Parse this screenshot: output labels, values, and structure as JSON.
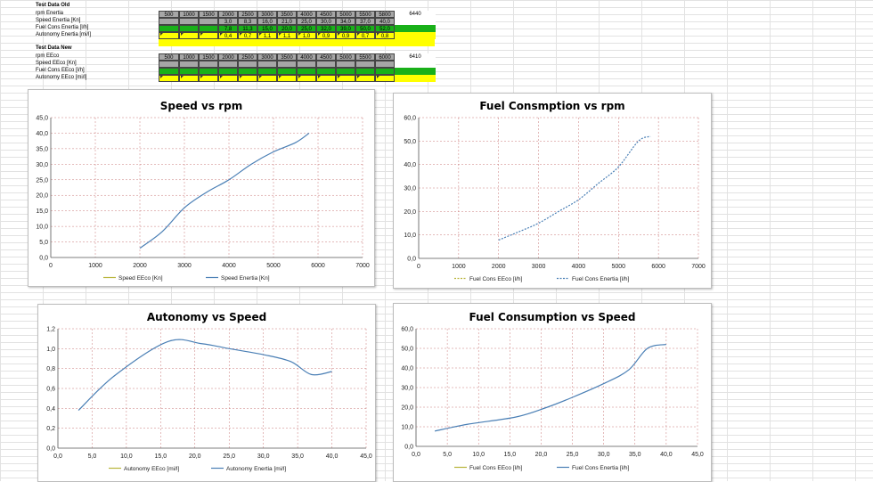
{
  "spreadsheet": {
    "old": {
      "title": "Test Data Old",
      "rows": [
        {
          "label": "rpm Enertia",
          "color": "gray",
          "cells": [
            "500",
            "1000",
            "1500",
            "2000",
            "2500",
            "3000",
            "3500",
            "4000",
            "4500",
            "5000",
            "5500",
            "5800",
            "6440"
          ]
        },
        {
          "label": "Speed  Enertia [Kn]",
          "color": "gray",
          "cells": [
            "",
            "",
            "",
            "3,0",
            "8,3",
            "16,0",
            "21,0",
            "25,0",
            "30,0",
            "34,0",
            "37,0",
            "40,0",
            ""
          ]
        },
        {
          "label": "Fuel Cons Enertia [l/h]",
          "color": "green",
          "cells": [
            "",
            "",
            "",
            "7,8",
            "11,3",
            "15,0",
            "20,0",
            "25,0",
            "32,0",
            "39,0",
            "50,0",
            "52,0",
            ""
          ]
        },
        {
          "label": "Autonomy Enertia [mi/l]",
          "color": "yellow",
          "cells": [
            "",
            "",
            "",
            "0,4",
            "0,7",
            "1,1",
            "1,1",
            "1,0",
            "0,9",
            "0,9",
            "0,7",
            "0,8",
            ""
          ]
        }
      ]
    },
    "new": {
      "title": "Test Data New",
      "rows": [
        {
          "label": "rpm EEco",
          "color": "gray",
          "cells": [
            "500",
            "1000",
            "1500",
            "2000",
            "2500",
            "3000",
            "3500",
            "4000",
            "4500",
            "5000",
            "5500",
            "6000",
            "6410"
          ]
        },
        {
          "label": "Speed EEco [Kn]",
          "color": "gray",
          "cells": [
            "",
            "",
            "",
            "",
            "",
            "",
            "",
            "",
            "",
            "",
            "",
            "",
            ""
          ]
        },
        {
          "label": "Fuel Cons EEco [l/h]",
          "color": "green",
          "cells": [
            "",
            "",
            "",
            "",
            "",
            "",
            "",
            "",
            "",
            "",
            "",
            "",
            ""
          ]
        },
        {
          "label": "Autonomy EEco [mi/l]",
          "color": "yellow",
          "cells": [
            "",
            "",
            "",
            "",
            "",
            "",
            "",
            "",
            "",
            "",
            "",
            "",
            ""
          ]
        }
      ]
    }
  },
  "colors": {
    "gray": "#a6a6a6",
    "green": "#19b019",
    "yellow": "#ffff00",
    "series_eeco": "#b8b43a",
    "series_enertia": "#4a7fb5",
    "gridline": "#c87878"
  },
  "chart_data": [
    {
      "id": "speed_rpm",
      "type": "line",
      "title": "Speed vs rpm",
      "xlim": [
        0,
        7000
      ],
      "ylim": [
        0,
        45
      ],
      "xticks": [
        "0",
        "1000",
        "2000",
        "3000",
        "4000",
        "5000",
        "6000",
        "7000"
      ],
      "yticks": [
        "0,0",
        "5,0",
        "10,0",
        "15,0",
        "20,0",
        "25,0",
        "30,0",
        "35,0",
        "40,0",
        "45,0"
      ],
      "xtick_values": [
        0,
        1000,
        2000,
        3000,
        4000,
        5000,
        6000,
        7000
      ],
      "ytick_values": [
        0,
        5,
        10,
        15,
        20,
        25,
        30,
        35,
        40,
        45
      ],
      "series": [
        {
          "name": "Speed EEco [Kn]",
          "x": [],
          "y": [],
          "dashed": false
        },
        {
          "name": "Speed  Enertia [Kn]",
          "x": [
            2000,
            2500,
            3000,
            3500,
            4000,
            4500,
            5000,
            5500,
            5800
          ],
          "y": [
            3.0,
            8.3,
            16.0,
            21.0,
            25.0,
            30.0,
            34.0,
            37.0,
            40.0
          ],
          "dashed": false
        }
      ]
    },
    {
      "id": "fuel_rpm",
      "type": "line",
      "title": "Fuel Consmption vs rpm",
      "xlim": [
        0,
        7000
      ],
      "ylim": [
        0,
        60
      ],
      "xticks": [
        "0",
        "1000",
        "2000",
        "3000",
        "4000",
        "5000",
        "6000",
        "7000"
      ],
      "yticks": [
        "0,0",
        "10,0",
        "20,0",
        "30,0",
        "40,0",
        "50,0",
        "60,0"
      ],
      "xtick_values": [
        0,
        1000,
        2000,
        3000,
        4000,
        5000,
        6000,
        7000
      ],
      "ytick_values": [
        0,
        10,
        20,
        30,
        40,
        50,
        60
      ],
      "series": [
        {
          "name": "Fuel Cons EEco [l/h]",
          "x": [],
          "y": [],
          "dashed": true
        },
        {
          "name": "Fuel Cons Enertia [l/h]",
          "x": [
            2000,
            2500,
            3000,
            3500,
            4000,
            4500,
            5000,
            5500,
            5800
          ],
          "y": [
            7.8,
            11.3,
            15.0,
            20.0,
            25.0,
            32.0,
            39.0,
            50.0,
            52.0
          ],
          "dashed": true
        }
      ]
    },
    {
      "id": "autonomy_speed",
      "type": "line",
      "title": "Autonomy vs Speed",
      "xlim": [
        0,
        45
      ],
      "ylim": [
        0,
        1.2
      ],
      "xticks": [
        "0,0",
        "5,0",
        "10,0",
        "15,0",
        "20,0",
        "25,0",
        "30,0",
        "35,0",
        "40,0",
        "45,0"
      ],
      "yticks": [
        "0,0",
        "0,2",
        "0,4",
        "0,6",
        "0,8",
        "1,0",
        "1,2"
      ],
      "xtick_values": [
        0,
        5,
        10,
        15,
        20,
        25,
        30,
        35,
        40,
        45
      ],
      "ytick_values": [
        0,
        0.2,
        0.4,
        0.6,
        0.8,
        1.0,
        1.2
      ],
      "series": [
        {
          "name": "Autonomy EEco [mi/l]",
          "x": [],
          "y": [],
          "dashed": false
        },
        {
          "name": "Autonomy Enertia [mi/l]",
          "x": [
            3.0,
            8.3,
            16.0,
            21.0,
            25.0,
            30.0,
            34.0,
            37.0,
            40.0
          ],
          "y": [
            0.38,
            0.73,
            1.07,
            1.05,
            1.0,
            0.94,
            0.87,
            0.74,
            0.77
          ],
          "dashed": false
        }
      ]
    },
    {
      "id": "fuel_speed",
      "type": "line",
      "title": "Fuel Consumption vs Speed",
      "xlim": [
        0,
        45
      ],
      "ylim": [
        0,
        60
      ],
      "xticks": [
        "0,0",
        "5,0",
        "10,0",
        "15,0",
        "20,0",
        "25,0",
        "30,0",
        "35,0",
        "40,0",
        "45,0"
      ],
      "yticks": [
        "0,0",
        "10,0",
        "20,0",
        "30,0",
        "40,0",
        "50,0",
        "60,0"
      ],
      "xtick_values": [
        0,
        5,
        10,
        15,
        20,
        25,
        30,
        35,
        40,
        45
      ],
      "ytick_values": [
        0,
        10,
        20,
        30,
        40,
        50,
        60
      ],
      "series": [
        {
          "name": "Fuel Cons EEco [l/h]",
          "x": [],
          "y": [],
          "dashed": false
        },
        {
          "name": "Fuel Cons Enertia [l/h]",
          "x": [
            3.0,
            8.3,
            16.0,
            21.0,
            25.0,
            30.0,
            34.0,
            37.0,
            40.0
          ],
          "y": [
            7.8,
            11.3,
            15.0,
            20.0,
            25.0,
            32.0,
            39.0,
            50.0,
            52.0
          ],
          "dashed": false
        }
      ]
    }
  ]
}
